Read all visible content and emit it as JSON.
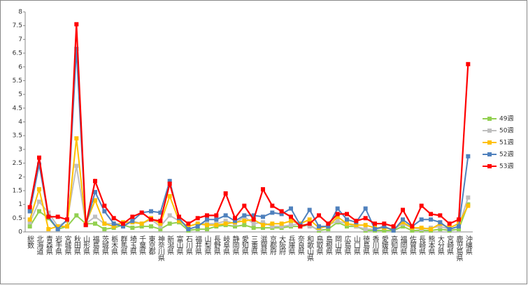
{
  "chart_data": {
    "type": "line",
    "categories": [
      "総数",
      "北海道",
      "青森県",
      "岩手県",
      "宮城県",
      "秋田県",
      "山形県",
      "福島県",
      "茨城県",
      "栃木県",
      "群馬県",
      "埼玉県",
      "千葉県",
      "東京都",
      "神奈川県",
      "新潟県",
      "富山県",
      "石川県",
      "福井県",
      "山梨県",
      "長野県",
      "岐阜県",
      "静岡県",
      "愛知県",
      "三重県",
      "滋賀県",
      "京都府",
      "大阪府",
      "兵庫県",
      "奈良県",
      "和歌山県",
      "鳥取県",
      "島根県",
      "岡山県",
      "広島県",
      "山口県",
      "徳島県",
      "香川県",
      "愛媛県",
      "高知県",
      "福岡県",
      "佐賀県",
      "長崎県",
      "熊本県",
      "大分県",
      "宮崎県",
      "鹿児島県",
      "沖縄県"
    ],
    "series": [
      {
        "name": "49週",
        "color": "#92d050",
        "values": [
          0.2,
          0.75,
          0.5,
          0.1,
          0.2,
          0.6,
          0.3,
          0.3,
          0.1,
          0.15,
          0.25,
          0.15,
          0.2,
          0.2,
          0.1,
          0.3,
          0.35,
          0.05,
          0.1,
          0.1,
          0.2,
          0.25,
          0.2,
          0.25,
          0.15,
          0.15,
          0.15,
          0.15,
          0.2,
          0.2,
          0.25,
          0.05,
          0.1,
          0.35,
          0.2,
          0.2,
          0.05,
          0.05,
          0.05,
          0.05,
          0.2,
          0.05,
          0.05,
          0.05,
          0.1,
          0.05,
          0.1,
          1.0
        ]
      },
      {
        "name": "50週",
        "color": "#bfbfbf",
        "values": [
          0.35,
          1.1,
          0.7,
          0.2,
          0.4,
          2.4,
          0.3,
          0.55,
          0.3,
          0.3,
          0.3,
          0.4,
          0.3,
          0.45,
          0.2,
          0.6,
          0.4,
          0.2,
          0.3,
          0.3,
          0.3,
          0.4,
          0.3,
          0.55,
          0.3,
          0.35,
          0.2,
          0.2,
          0.25,
          0.3,
          0.2,
          0.1,
          0.25,
          0.4,
          0.3,
          0.2,
          0.1,
          0.1,
          0.15,
          0.1,
          0.3,
          0.15,
          0.1,
          0.15,
          0.2,
          0.1,
          0.2,
          1.25
        ]
      },
      {
        "name": "51週",
        "color": "#ffc000",
        "values": [
          0.45,
          1.55,
          0.1,
          0.2,
          0.2,
          3.4,
          0.3,
          1.15,
          0.3,
          0.2,
          0.35,
          0.35,
          0.3,
          0.5,
          0.3,
          1.3,
          0.4,
          0.2,
          0.3,
          0.25,
          0.25,
          0.3,
          0.35,
          0.4,
          0.45,
          0.25,
          0.3,
          0.3,
          0.4,
          0.3,
          0.45,
          0.15,
          0.2,
          0.55,
          0.3,
          0.25,
          0.25,
          0.15,
          0.15,
          0.1,
          0.35,
          0.15,
          0.15,
          0.1,
          0.3,
          0.15,
          0.3,
          0.95
        ]
      },
      {
        "name": "52週",
        "color": "#4f81bd",
        "values": [
          0.75,
          2.45,
          0.55,
          0.1,
          0.45,
          6.65,
          0.25,
          1.45,
          0.75,
          0.3,
          0.2,
          0.4,
          0.7,
          0.75,
          0.7,
          1.85,
          0.5,
          0.1,
          0.2,
          0.45,
          0.45,
          0.6,
          0.4,
          0.6,
          0.6,
          0.55,
          0.7,
          0.65,
          0.85,
          0.25,
          0.8,
          0.2,
          0.2,
          0.85,
          0.45,
          0.35,
          0.85,
          0.1,
          0.2,
          0.05,
          0.45,
          0.2,
          0.45,
          0.45,
          0.35,
          0.1,
          0.2,
          2.75
        ]
      },
      {
        "name": "53週",
        "color": "#ff0000",
        "values": [
          0.9,
          2.7,
          0.55,
          0.55,
          0.45,
          7.55,
          0.25,
          1.85,
          0.95,
          0.5,
          0.3,
          0.55,
          0.7,
          0.45,
          0.4,
          1.75,
          0.55,
          0.3,
          0.5,
          0.6,
          0.6,
          1.4,
          0.5,
          0.95,
          0.45,
          1.55,
          0.95,
          0.75,
          0.55,
          0.2,
          0.3,
          0.6,
          0.3,
          0.65,
          0.65,
          0.4,
          0.5,
          0.3,
          0.3,
          0.2,
          0.8,
          0.2,
          0.95,
          0.65,
          0.6,
          0.3,
          0.45,
          6.1
        ]
      }
    ],
    "ylim": [
      0,
      8
    ],
    "yticks": [
      0,
      0.5,
      1,
      1.5,
      2,
      2.5,
      3,
      3.5,
      4,
      4.5,
      5,
      5.5,
      6,
      6.5,
      7,
      7.5,
      8
    ],
    "grid": false,
    "legend": "right"
  }
}
